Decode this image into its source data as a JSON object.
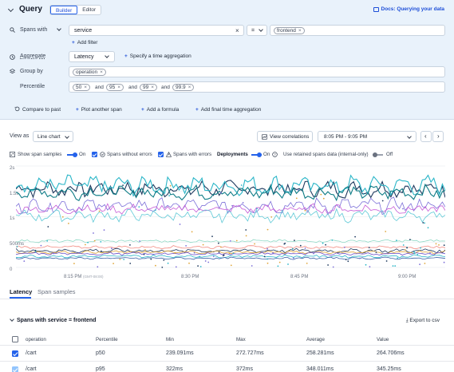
{
  "header": {
    "title": "Query",
    "modes": [
      "Builder",
      "Editor"
    ],
    "docs_link": "Docs: Querying your data"
  },
  "spans_with": {
    "label": "Spans with",
    "attribute": "service",
    "operator": "=",
    "value_chip": "frontend",
    "add_filter": "Add filter"
  },
  "aggregate": {
    "label": "Aggregate",
    "value": "Latency",
    "time_link": "Specify a time aggregation"
  },
  "group_by": {
    "label": "Group by",
    "chip": "operation"
  },
  "percentile": {
    "label": "Percentile",
    "values": [
      "50",
      "95",
      "99",
      "99.9"
    ],
    "joiner": "and"
  },
  "actions": {
    "compare": "Compare to past",
    "plot_another": "Plot another span",
    "add_formula": "Add a formula",
    "add_final": "Add final time aggregation"
  },
  "view": {
    "label": "View as",
    "chart_type": "Line chart",
    "correlations": "View correlations",
    "time_range": "8:05 PM - 9:05 PM"
  },
  "options": {
    "show_span_samples": "Show span samples",
    "on1": "On",
    "spans_without_errors": "Spans without errors",
    "spans_with_errors": "Spans with errors",
    "deployments": "Deployments",
    "on2": "On",
    "retained": "Use retained spans data (internal-only)",
    "off": "Off"
  },
  "chart_data": {
    "type": "line",
    "y_ticks": [
      "2s",
      "1.5s",
      "1s",
      "500ms",
      "0"
    ],
    "x_ticks": [
      "8:15 PM",
      "8:30 PM",
      "8:45 PM",
      "9:00 PM"
    ],
    "x_tick_note": "(GMT-08:00)",
    "ylim": [
      0,
      2
    ],
    "y_unit": "s",
    "grid": true,
    "series": [
      {
        "color": "#1f3a5f",
        "level": 1.55,
        "amp": 0.12
      },
      {
        "color": "#2bb6c8",
        "level": 1.62,
        "amp": 0.14
      },
      {
        "color": "#0e7c86",
        "level": 1.48,
        "amp": 0.1
      },
      {
        "color": "#7c6fd8",
        "level": 1.22,
        "amp": 0.11
      },
      {
        "color": "#c65bd6",
        "level": 1.15,
        "amp": 0.07
      },
      {
        "color": "#5ec9d6",
        "level": 1.02,
        "amp": 0.09
      },
      {
        "color": "#8fd8c5",
        "level": 0.52,
        "amp": 0.02
      },
      {
        "color": "#f28b82",
        "level": 0.4,
        "amp": 0.02
      },
      {
        "color": "#1f3a5f",
        "level": 0.33,
        "amp": 0.03
      },
      {
        "color": "#e0a63a",
        "level": 0.3,
        "amp": 0.02
      },
      {
        "color": "#6b4fc8",
        "level": 0.27,
        "amp": 0.02
      },
      {
        "color": "#2bb6c8",
        "level": 0.22,
        "amp": 0.02
      },
      {
        "color": "#3b5fa8",
        "level": 0.18,
        "amp": 0.015
      }
    ]
  },
  "tabs": [
    "Latency",
    "Span samples"
  ],
  "table": {
    "section_title": "Spans with service = frontend",
    "export": "Export to csv",
    "columns": [
      "operation",
      "Percentile",
      "Min",
      "Max",
      "Average",
      "Value"
    ],
    "rows": [
      {
        "operation": "/cart",
        "percentile": "p50",
        "min": "239.091ms",
        "max": "272.727ms",
        "average": "258.281ms",
        "value": "264.706ms"
      },
      {
        "operation": "/cart",
        "percentile": "p95",
        "min": "322ms",
        "max": "372ms",
        "average": "348.011ms",
        "value": "345.25ms"
      }
    ]
  }
}
